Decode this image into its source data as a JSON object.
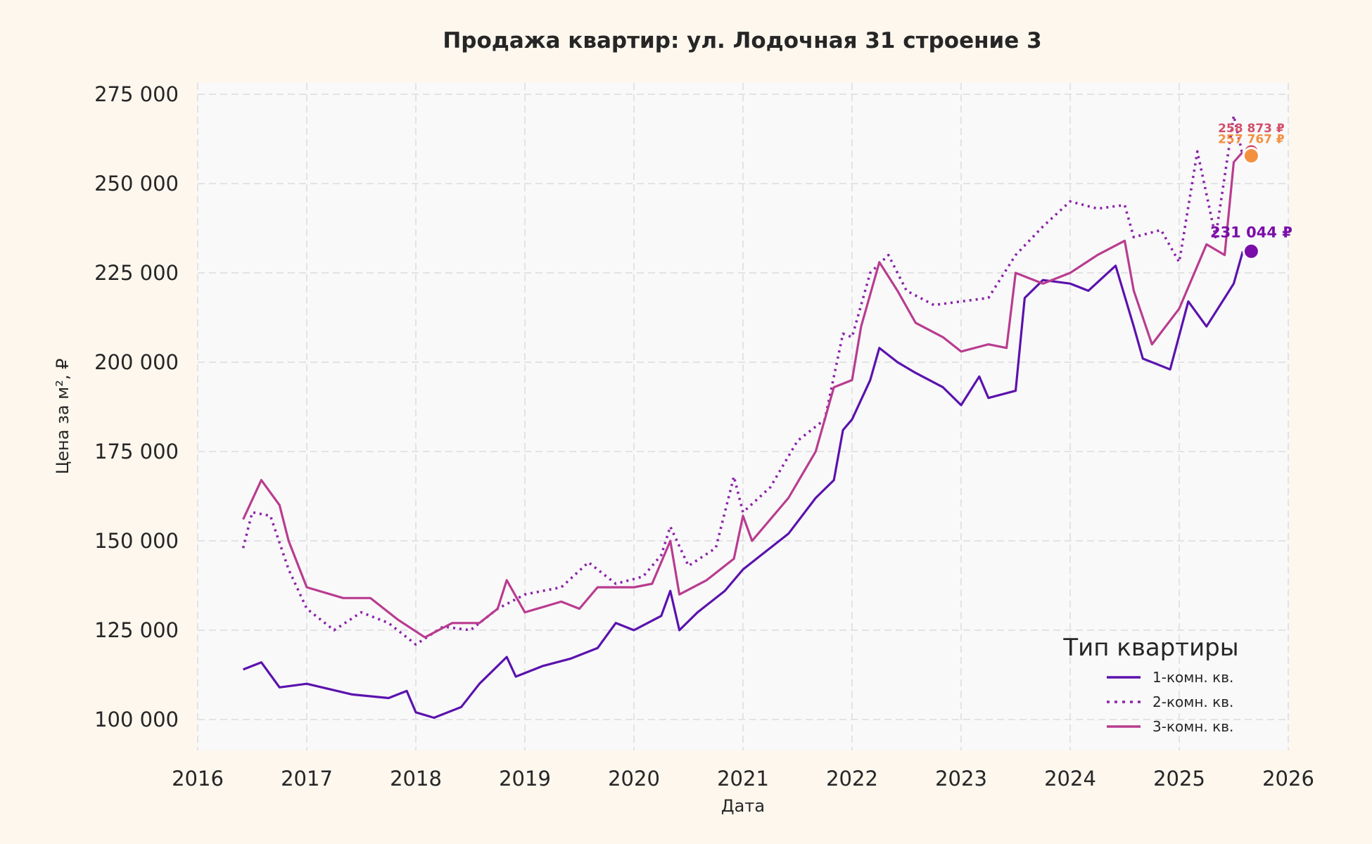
{
  "chart_data": {
    "type": "line",
    "title": "Продажа квартир: ул. Лодочная 31 строение 3",
    "xlabel": "Дата",
    "ylabel": "Цена за м², ₽",
    "xlim": [
      "2016-01",
      "2026-01"
    ],
    "ylim": [
      91340,
      278150
    ],
    "x_ticks": [
      "2016",
      "2017",
      "2018",
      "2019",
      "2020",
      "2021",
      "2022",
      "2023",
      "2024",
      "2025",
      "2026"
    ],
    "y_ticks": [
      100000,
      125000,
      150000,
      175000,
      200000,
      225000,
      250000,
      275000
    ],
    "y_tick_labels": [
      "100 000",
      "125 000",
      "150 000",
      "175 000",
      "200 000",
      "225 000",
      "250 000",
      "275 000"
    ],
    "grid": true,
    "legend": {
      "title": "Тип квартиры",
      "placement": "bottom-right"
    },
    "series": [
      {
        "name": "1-комн. кв.",
        "color": "#5b12ad",
        "style": "solid",
        "points": [
          [
            "2016-06",
            114000
          ],
          [
            "2016-08",
            116000
          ],
          [
            "2016-10",
            109000
          ],
          [
            "2017-01",
            110000
          ],
          [
            "2017-06",
            107000
          ],
          [
            "2017-10",
            106000
          ],
          [
            "2017-12",
            108000
          ],
          [
            "2018-01",
            102000
          ],
          [
            "2018-03",
            100500
          ],
          [
            "2018-06",
            103500
          ],
          [
            "2018-08",
            110000
          ],
          [
            "2018-11",
            117500
          ],
          [
            "2018-12",
            112000
          ],
          [
            "2019-03",
            115000
          ],
          [
            "2019-06",
            117000
          ],
          [
            "2019-09",
            120000
          ],
          [
            "2019-11",
            127000
          ],
          [
            "2020-01",
            125000
          ],
          [
            "2020-04",
            129000
          ],
          [
            "2020-05",
            136000
          ],
          [
            "2020-06",
            125000
          ],
          [
            "2020-08",
            130000
          ],
          [
            "2020-11",
            136000
          ],
          [
            "2021-01",
            142000
          ],
          [
            "2021-03",
            146000
          ],
          [
            "2021-06",
            152000
          ],
          [
            "2021-09",
            162000
          ],
          [
            "2021-11",
            167000
          ],
          [
            "2021-12",
            181000
          ],
          [
            "2022-01",
            184000
          ],
          [
            "2022-03",
            195000
          ],
          [
            "2022-04",
            204000
          ],
          [
            "2022-06",
            200000
          ],
          [
            "2022-08",
            197000
          ],
          [
            "2022-11",
            193000
          ],
          [
            "2023-01",
            188000
          ],
          [
            "2023-03",
            196000
          ],
          [
            "2023-04",
            190000
          ],
          [
            "2023-07",
            192000
          ],
          [
            "2023-08",
            218000
          ],
          [
            "2023-10",
            223000
          ],
          [
            "2024-01",
            222000
          ],
          [
            "2024-03",
            220000
          ],
          [
            "2024-06",
            227000
          ],
          [
            "2024-08",
            210000
          ],
          [
            "2024-09",
            201000
          ],
          [
            "2024-12",
            198000
          ],
          [
            "2025-02",
            217000
          ],
          [
            "2025-04",
            210000
          ],
          [
            "2025-06",
            218000
          ],
          [
            "2025-07",
            222000
          ],
          [
            "2025-08",
            231044
          ]
        ]
      },
      {
        "name": "2-комн. кв.",
        "color": "#8c22a8",
        "style": "dotted",
        "points": [
          [
            "2016-06",
            148000
          ],
          [
            "2016-07",
            158000
          ],
          [
            "2016-09",
            157000
          ],
          [
            "2016-11",
            142000
          ],
          [
            "2017-01",
            131000
          ],
          [
            "2017-04",
            125000
          ],
          [
            "2017-07",
            130000
          ],
          [
            "2017-10",
            127000
          ],
          [
            "2018-01",
            121000
          ],
          [
            "2018-04",
            126000
          ],
          [
            "2018-07",
            125000
          ],
          [
            "2018-10",
            131000
          ],
          [
            "2019-01",
            135000
          ],
          [
            "2019-05",
            137000
          ],
          [
            "2019-08",
            144000
          ],
          [
            "2019-11",
            138000
          ],
          [
            "2020-02",
            140000
          ],
          [
            "2020-04",
            146000
          ],
          [
            "2020-05",
            154000
          ],
          [
            "2020-07",
            143000
          ],
          [
            "2020-10",
            148000
          ],
          [
            "2020-12",
            168000
          ],
          [
            "2021-01",
            158000
          ],
          [
            "2021-04",
            165000
          ],
          [
            "2021-07",
            178000
          ],
          [
            "2021-10",
            184000
          ],
          [
            "2021-12",
            208000
          ],
          [
            "2022-01",
            207000
          ],
          [
            "2022-03",
            225000
          ],
          [
            "2022-05",
            230000
          ],
          [
            "2022-07",
            220000
          ],
          [
            "2022-10",
            216000
          ],
          [
            "2023-01",
            217000
          ],
          [
            "2023-04",
            218000
          ],
          [
            "2023-07",
            230000
          ],
          [
            "2023-10",
            238000
          ],
          [
            "2024-01",
            245000
          ],
          [
            "2024-04",
            243000
          ],
          [
            "2024-07",
            244000
          ],
          [
            "2024-08",
            235000
          ],
          [
            "2024-11",
            237000
          ],
          [
            "2025-01",
            228000
          ],
          [
            "2025-03",
            259000
          ],
          [
            "2025-05",
            235000
          ],
          [
            "2025-07",
            269000
          ],
          [
            "2025-08",
            257767
          ]
        ]
      },
      {
        "name": "3-комн. кв.",
        "color": "#b93c8f",
        "style": "solid",
        "points": [
          [
            "2016-06",
            156000
          ],
          [
            "2016-08",
            167000
          ],
          [
            "2016-10",
            160000
          ],
          [
            "2016-11",
            150000
          ],
          [
            "2017-01",
            137000
          ],
          [
            "2017-05",
            134000
          ],
          [
            "2017-08",
            134000
          ],
          [
            "2017-11",
            128000
          ],
          [
            "2018-02",
            123000
          ],
          [
            "2018-05",
            127000
          ],
          [
            "2018-08",
            127000
          ],
          [
            "2018-10",
            131000
          ],
          [
            "2018-11",
            139000
          ],
          [
            "2019-01",
            130000
          ],
          [
            "2019-05",
            133000
          ],
          [
            "2019-07",
            131000
          ],
          [
            "2019-09",
            137000
          ],
          [
            "2019-10",
            137000
          ],
          [
            "2020-01",
            137000
          ],
          [
            "2020-03",
            138000
          ],
          [
            "2020-05",
            150000
          ],
          [
            "2020-06",
            135000
          ],
          [
            "2020-09",
            139000
          ],
          [
            "2020-12",
            145000
          ],
          [
            "2021-01",
            157000
          ],
          [
            "2021-02",
            150000
          ],
          [
            "2021-06",
            162000
          ],
          [
            "2021-09",
            175000
          ],
          [
            "2021-11",
            193000
          ],
          [
            "2022-01",
            195000
          ],
          [
            "2022-02",
            210000
          ],
          [
            "2022-04",
            228000
          ],
          [
            "2022-06",
            220000
          ],
          [
            "2022-08",
            211000
          ],
          [
            "2022-11",
            207000
          ],
          [
            "2023-01",
            203000
          ],
          [
            "2023-04",
            205000
          ],
          [
            "2023-06",
            204000
          ],
          [
            "2023-07",
            225000
          ],
          [
            "2023-10",
            222000
          ],
          [
            "2024-01",
            225000
          ],
          [
            "2024-04",
            230000
          ],
          [
            "2024-07",
            234000
          ],
          [
            "2024-08",
            220000
          ],
          [
            "2024-10",
            205000
          ],
          [
            "2025-01",
            215000
          ],
          [
            "2025-04",
            233000
          ],
          [
            "2025-06",
            230000
          ],
          [
            "2025-07",
            256000
          ],
          [
            "2025-08",
            258873
          ]
        ]
      }
    ],
    "annotations": [
      {
        "text": "258 873 ₽",
        "date": "2025-08",
        "value": 258873,
        "color": "#d24f6a",
        "marker_color": "#d24f6a"
      },
      {
        "text": "257 767 ₽",
        "date": "2025-08",
        "value": 257767,
        "color": "#f39140",
        "marker_color": "#f39140"
      },
      {
        "text": "231 044 ₽",
        "date": "2025-08",
        "value": 231044,
        "color": "#7a0ea8",
        "marker_color": "#7a0ea8"
      }
    ]
  }
}
